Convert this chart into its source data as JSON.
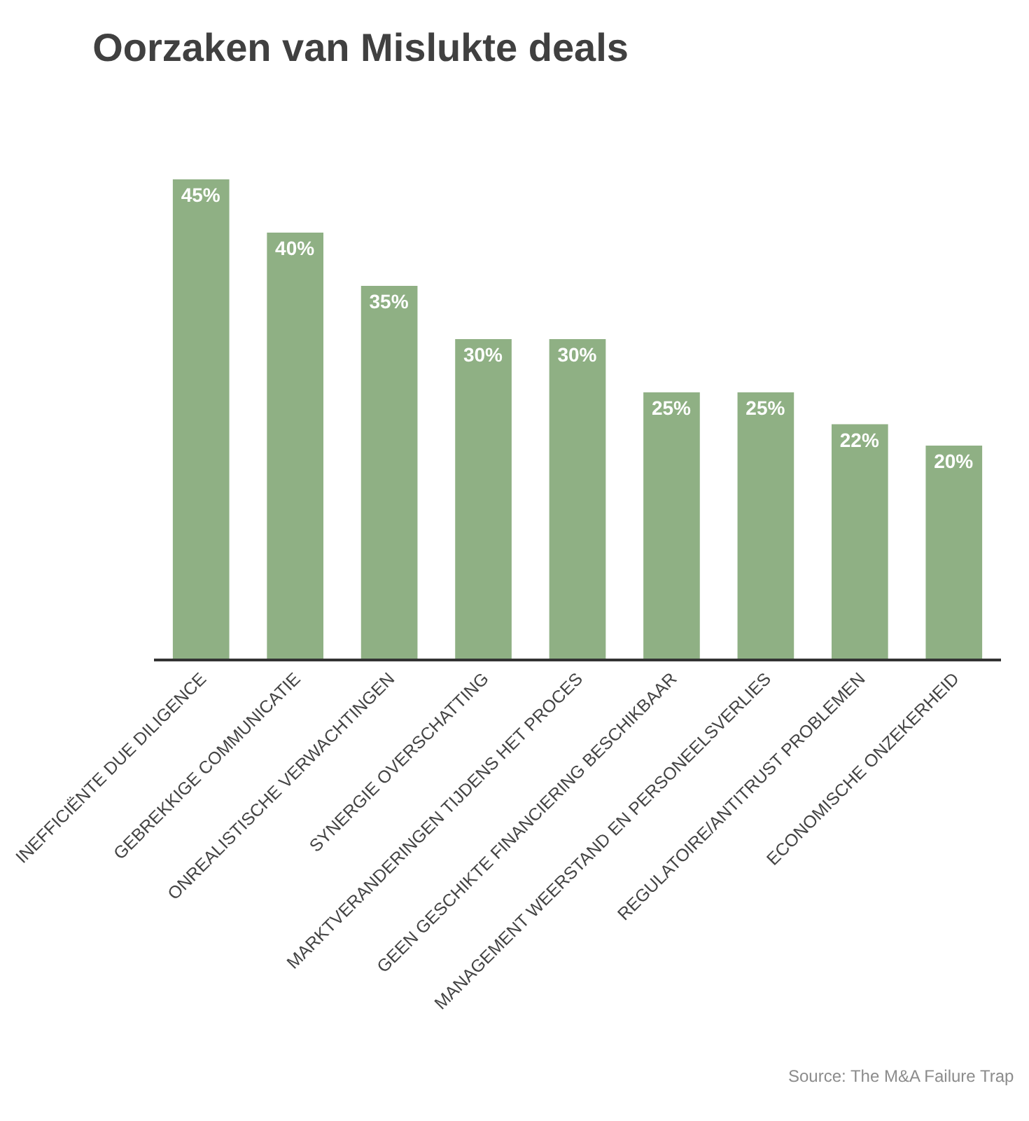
{
  "chart_data": {
    "type": "bar",
    "title": "Oorzaken van Mislukte deals",
    "categories": [
      "INEFFICIËNTE DUE DILIGENCE",
      "GEBREKKIGE COMMUNICATIE",
      "ONREALISTISCHE VERWACHTINGEN",
      "SYNERGIE OVERSCHATTING",
      "MARKTVERANDERINGEN TIJDENS HET PROCES",
      "GEEN GESCHIKTE FINANCIERING BESCHIKBAAR",
      "MANAGEMENT WEERSTAND EN PERSONEELSVERLIES",
      "REGULATOIRE/ANTITRUST PROBLEMEN",
      "ECONOMISCHE ONZEKERHEID"
    ],
    "values": [
      45,
      40,
      35,
      30,
      30,
      25,
      25,
      22,
      20
    ],
    "value_labels": [
      "45%",
      "40%",
      "35%",
      "30%",
      "30%",
      "25%",
      "25%",
      "22%",
      "20%"
    ],
    "color": "#8fb084",
    "tick_labels": "x",
    "grid": false,
    "annotations": [
      "Source: The M&A Failure Trap"
    ]
  }
}
